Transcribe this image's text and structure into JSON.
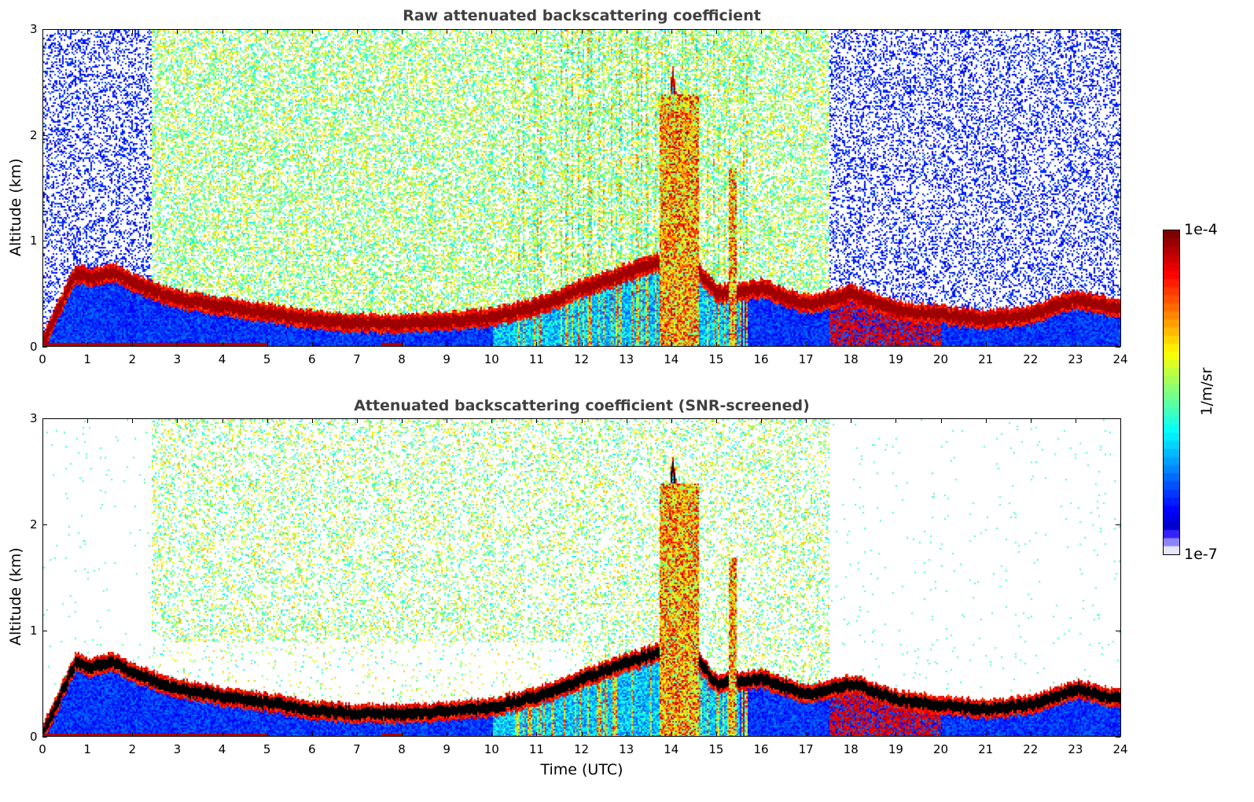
{
  "chart_data": [
    {
      "type": "heatmap",
      "title": "Raw attenuated backscattering coefficient",
      "xlabel": "",
      "ylabel": "Altitude (km)",
      "xlim": [
        0,
        24
      ],
      "ylim": [
        0,
        3
      ],
      "xticks": [
        "0",
        "1",
        "2",
        "3",
        "4",
        "5",
        "6",
        "7",
        "8",
        "9",
        "10",
        "11",
        "12",
        "13",
        "14",
        "15",
        "16",
        "17",
        "18",
        "19",
        "20",
        "21",
        "22",
        "23",
        "24"
      ],
      "yticks": [
        "0",
        "1",
        "2",
        "3"
      ],
      "screened": false
    },
    {
      "type": "heatmap",
      "title": "Attenuated backscattering coefficient (SNR-screened)",
      "xlabel": "Time (UTC)",
      "ylabel": "Altitude (km)",
      "xlim": [
        0,
        24
      ],
      "ylim": [
        0,
        3
      ],
      "xticks": [
        "0",
        "1",
        "2",
        "3",
        "4",
        "5",
        "6",
        "7",
        "8",
        "9",
        "10",
        "11",
        "12",
        "13",
        "14",
        "15",
        "16",
        "17",
        "18",
        "19",
        "20",
        "21",
        "22",
        "23",
        "24"
      ],
      "yticks": [
        "0",
        "1",
        "2",
        "3"
      ],
      "screened": true
    }
  ],
  "layer_height_km": {
    "time_utc": [
      0,
      0.7,
      1,
      1.6,
      2,
      3,
      4,
      5,
      6,
      7,
      8,
      9,
      10,
      11,
      12,
      13,
      13.7,
      14,
      14.6,
      15,
      16,
      17,
      18,
      19,
      20,
      21,
      22,
      23,
      24
    ],
    "altitude": [
      0.05,
      0.7,
      0.66,
      0.7,
      0.6,
      0.45,
      0.38,
      0.32,
      0.25,
      0.22,
      0.22,
      0.24,
      0.28,
      0.38,
      0.55,
      0.7,
      0.8,
      2.6,
      0.7,
      0.5,
      0.55,
      0.4,
      0.5,
      0.35,
      0.3,
      0.26,
      0.3,
      0.45,
      0.35
    ]
  },
  "colorbar": {
    "label": "1/m/sr",
    "min_label": "1e-7",
    "max_label": "1e-4",
    "min": 1e-07,
    "max": 0.0001,
    "scale": "log",
    "colormap": "jet"
  }
}
